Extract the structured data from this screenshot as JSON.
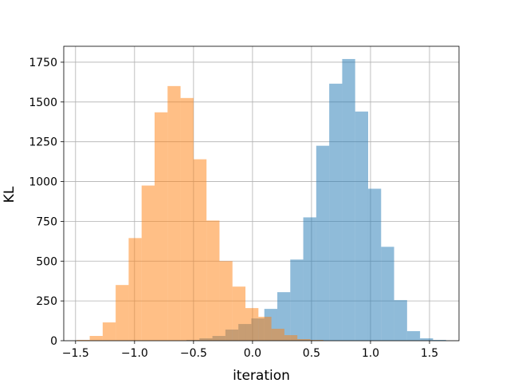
{
  "chart_data": {
    "type": "histogram",
    "xlabel": "iteration",
    "ylabel": "KL",
    "xlim": [
      -1.6,
      1.75
    ],
    "ylim": [
      0,
      1850
    ],
    "xticks": [
      -1.5,
      -1.0,
      -0.5,
      0.0,
      0.5,
      1.0,
      1.5
    ],
    "xtick_labels": [
      "−1.5",
      "−1.0",
      "−0.5",
      "0.0",
      "0.5",
      "1.0",
      "1.5"
    ],
    "yticks": [
      0,
      250,
      500,
      750,
      1000,
      1250,
      1500,
      1750
    ],
    "ytick_labels": [
      "0",
      "250",
      "500",
      "750",
      "1000",
      "1250",
      "1500",
      "1750"
    ],
    "grid": true,
    "series": [
      {
        "color": "#1f77b4",
        "opacity": 0.5,
        "bins": [
          [
            -0.56,
            -0.45,
            5
          ],
          [
            -0.45,
            -0.34,
            15
          ],
          [
            -0.34,
            -0.23,
            30
          ],
          [
            -0.23,
            -0.12,
            70
          ],
          [
            -0.12,
            -0.01,
            105
          ],
          [
            -0.01,
            0.1,
            140
          ],
          [
            0.1,
            0.21,
            200
          ],
          [
            0.21,
            0.32,
            305
          ],
          [
            0.32,
            0.43,
            510
          ],
          [
            0.43,
            0.54,
            775
          ],
          [
            0.54,
            0.65,
            1225
          ],
          [
            0.65,
            0.76,
            1615
          ],
          [
            0.76,
            0.87,
            1770
          ],
          [
            0.87,
            0.98,
            1440
          ],
          [
            0.98,
            1.09,
            955
          ],
          [
            1.09,
            1.2,
            590
          ],
          [
            1.2,
            1.31,
            255
          ],
          [
            1.31,
            1.42,
            60
          ],
          [
            1.42,
            1.53,
            15
          ],
          [
            1.53,
            1.64,
            5
          ]
        ]
      },
      {
        "color": "#ff7f0e",
        "opacity": 0.5,
        "bins": [
          [
            -1.49,
            -1.38,
            5
          ],
          [
            -1.38,
            -1.27,
            30
          ],
          [
            -1.27,
            -1.16,
            115
          ],
          [
            -1.16,
            -1.05,
            350
          ],
          [
            -1.05,
            -0.94,
            645
          ],
          [
            -0.94,
            -0.83,
            975
          ],
          [
            -0.83,
            -0.72,
            1435
          ],
          [
            -0.72,
            -0.61,
            1600
          ],
          [
            -0.61,
            -0.5,
            1525
          ],
          [
            -0.5,
            -0.39,
            1140
          ],
          [
            -0.39,
            -0.28,
            755
          ],
          [
            -0.28,
            -0.17,
            500
          ],
          [
            -0.17,
            -0.06,
            340
          ],
          [
            -0.06,
            0.05,
            205
          ],
          [
            0.05,
            0.16,
            150
          ],
          [
            0.16,
            0.27,
            75
          ],
          [
            0.27,
            0.38,
            35
          ],
          [
            0.38,
            0.49,
            10
          ],
          [
            0.49,
            0.6,
            5
          ]
        ]
      }
    ]
  }
}
